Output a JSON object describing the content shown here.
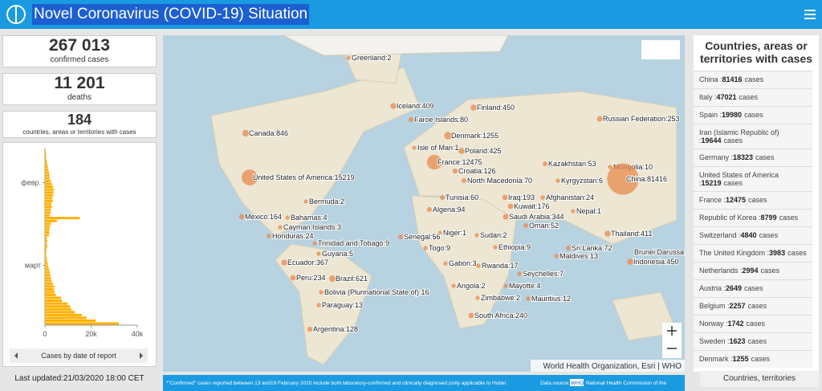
{
  "header": {
    "title": "Novel Coronavirus (COVID-19) Situation"
  },
  "stats": [
    {
      "value": "267 013",
      "label": "confirmed cases"
    },
    {
      "value": "11 201",
      "label": "deaths"
    },
    {
      "value": "184",
      "label": "countries, areas or territories with cases"
    }
  ],
  "daily_chart": {
    "type": "bar",
    "color": "#ffb000",
    "values": [
      300,
      400,
      500,
      600,
      800,
      1000,
      1300,
      1500,
      1800,
      2000,
      2100,
      2500,
      3000,
      3500,
      3800,
      3700,
      3600,
      3200,
      3400,
      2800,
      3000,
      2600,
      2500,
      2100,
      15100,
      5100,
      2600,
      2100,
      2000,
      1900,
      1800,
      800,
      1100,
      800,
      1100,
      700,
      600,
      500,
      800,
      1000,
      1200,
      1500,
      1800,
      2100,
      2300,
      2600,
      2800,
      3400,
      4000,
      3900,
      4200,
      4700,
      7000,
      7300,
      9800,
      10900,
      11500,
      13000,
      16000,
      18000,
      22000,
      32000
    ],
    "xlim": [
      0,
      40000
    ],
    "xticks": [
      0,
      {
        "value": 20000,
        "label": "20k"
      },
      {
        "value": 40000,
        "label": "40k"
      }
    ],
    "yticks": [
      {
        "value": 12,
        "label": "февр."
      },
      {
        "value": 41,
        "label": "март"
      }
    ],
    "caption": "Cases by date of report"
  },
  "last_updated": "Last updated:21/03/2020 18:00 CET",
  "map": {
    "markers": [
      {
        "label": "Greenland:2",
        "value": 2
      },
      {
        "label": "Iceland:409",
        "value": 409
      },
      {
        "label": "Finland:450",
        "value": 450
      },
      {
        "label": "Faroe Islands:80",
        "value": 80
      },
      {
        "label": "Russian Federation:253",
        "value": 253
      },
      {
        "label": "Canada:846",
        "value": 846
      },
      {
        "label": "Denmark:1255",
        "value": 1255
      },
      {
        "label": "Isle of Man:1",
        "value": 1
      },
      {
        "label": "Poland:425",
        "value": 425
      },
      {
        "label": "France:12475",
        "value": 12475
      },
      {
        "label": "Kazakhstan:53",
        "value": 53
      },
      {
        "label": "Mongolia:10",
        "value": 10
      },
      {
        "label": "Croatia:126",
        "value": 126
      },
      {
        "label": "United States of America:15219",
        "value": 15219
      },
      {
        "label": "North Macedonia:70",
        "value": 70
      },
      {
        "label": "Kyrgyzstan:6",
        "value": 6
      },
      {
        "label": "China:81416",
        "value": 81416
      },
      {
        "label": "Tunisia:60",
        "value": 60
      },
      {
        "label": "Iraq:193",
        "value": 193
      },
      {
        "label": "Afghanistan:24",
        "value": 24
      },
      {
        "label": "Bermuda:2",
        "value": 2
      },
      {
        "label": "Kuwait:176",
        "value": 176
      },
      {
        "label": "Algeria:94",
        "value": 94
      },
      {
        "label": "Nepal:1",
        "value": 1
      },
      {
        "label": "Mexico:164",
        "value": 164
      },
      {
        "label": "Bahamas:4",
        "value": 4
      },
      {
        "label": "Saudi Arabia:344",
        "value": 344
      },
      {
        "label": "Cayman Islands:3",
        "value": 3
      },
      {
        "label": "Oman:52",
        "value": 52
      },
      {
        "label": "Honduras:24",
        "value": 24
      },
      {
        "label": "Thailand:411",
        "value": 411
      },
      {
        "label": "Niger:1",
        "value": 1
      },
      {
        "label": "Sudan:2",
        "value": 2
      },
      {
        "label": "Trinidad and Tobago:9",
        "value": 9
      },
      {
        "label": "Senegal:56",
        "value": 56
      },
      {
        "label": "Ethiopia:9",
        "value": 9
      },
      {
        "label": "Brunei Darussa",
        "value": null
      },
      {
        "label": "Togo:9",
        "value": 9
      },
      {
        "label": "Sri Lanka:72",
        "value": 72
      },
      {
        "label": "Guyana:5",
        "value": 5
      },
      {
        "label": "Maldives:13",
        "value": 13
      },
      {
        "label": "Indonesia:450",
        "value": 450
      },
      {
        "label": "Ecuador:367",
        "value": 367
      },
      {
        "label": "Gabon:3",
        "value": 3
      },
      {
        "label": "Rwanda:17",
        "value": 17
      },
      {
        "label": "Seychelles:7",
        "value": 7
      },
      {
        "label": "Peru:234",
        "value": 234
      },
      {
        "label": "Brazil:621",
        "value": 621
      },
      {
        "label": "Angola:2",
        "value": 2
      },
      {
        "label": "Mayotte:4",
        "value": 4
      },
      {
        "label": "Bolivia (Plurinational State of):16",
        "value": 16
      },
      {
        "label": "Zimbabwe:2",
        "value": 2
      },
      {
        "label": "Mauritius:12",
        "value": 12
      },
      {
        "label": "Paraguay:13",
        "value": 13
      },
      {
        "label": "South Africa:240",
        "value": 240
      },
      {
        "label": "Argentina:128",
        "value": 128
      }
    ],
    "attribution": "World Health Organization, Esri | WHO",
    "footnote": "*\"Confirmed\" cases reported between 13 and19 February 2020 include both laboratory-confirmed and clinically diagnosed (only  applicable to Hubei",
    "data_source": "Data source:",
    "data_source_tag": "WHO",
    "data_source_text": "National Health Commission of the"
  },
  "country_list": {
    "title": "Countries, areas or territories with cases",
    "footer": "Countries, territories",
    "items": [
      {
        "name": "China :",
        "value": 81416,
        "unit": "cases"
      },
      {
        "name": "Italy :",
        "value": 47021,
        "unit": "cases"
      },
      {
        "name": "Spain :",
        "value": 19980,
        "unit": "cases"
      },
      {
        "name": "Iran (Islamic Republic of) :",
        "value": 19644,
        "unit": "cases"
      },
      {
        "name": "Germany :",
        "value": 18323,
        "unit": "cases"
      },
      {
        "name": "United States of America :",
        "value": 15219,
        "unit": "cases"
      },
      {
        "name": "France :",
        "value": 12475,
        "unit": "cases"
      },
      {
        "name": "Republic of Korea :",
        "value": 8799,
        "unit": "cases"
      },
      {
        "name": "Switzerland :",
        "value": 4840,
        "unit": "cases"
      },
      {
        "name": "The United Kingdom :",
        "value": 3983,
        "unit": "cases"
      },
      {
        "name": "Netherlands :",
        "value": 2994,
        "unit": "cases"
      },
      {
        "name": "Austria :",
        "value": 2649,
        "unit": "cases"
      },
      {
        "name": "Belgium :",
        "value": 2257,
        "unit": "cases"
      },
      {
        "name": "Norway :",
        "value": 1742,
        "unit": "cases"
      },
      {
        "name": "Sweden :",
        "value": 1623,
        "unit": "cases"
      },
      {
        "name": "Denmark :",
        "value": 1255,
        "unit": "cases"
      }
    ]
  }
}
